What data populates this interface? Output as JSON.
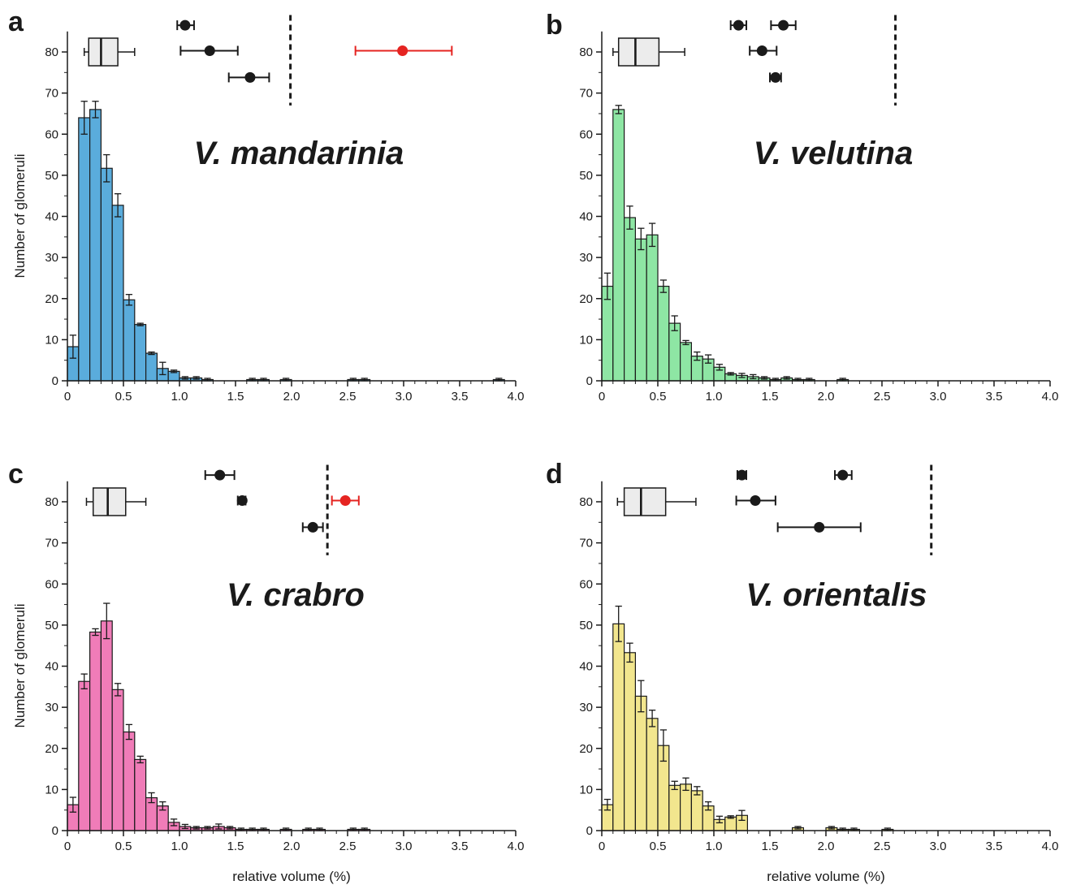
{
  "figure": {
    "ylabel": "Number of glomeruli",
    "xlabel": "relative volume (%)",
    "colors": {
      "axis": "#1a1a1a",
      "highlight_point": "#e52421",
      "box_fill": "#ececec"
    }
  },
  "chart_data": [
    {
      "type": "bar",
      "panel": "a",
      "species": "V. mandarinia",
      "ylabel": "Number of glomeruli",
      "xlabel": "",
      "bar_color": "#5aacdc",
      "xlim": [
        0,
        4.0
      ],
      "ylim": [
        0,
        85
      ],
      "xticks": [
        0,
        0.5,
        1.0,
        1.5,
        2.0,
        2.5,
        3.0,
        3.5,
        4.0
      ],
      "yticks": [
        0,
        10,
        20,
        30,
        40,
        50,
        60,
        70,
        80
      ],
      "bin_width": 0.1,
      "bins": [
        {
          "x": 0.05,
          "y": 8.3,
          "err": 2.8
        },
        {
          "x": 0.15,
          "y": 64.0,
          "err": 4.0
        },
        {
          "x": 0.25,
          "y": 66.0,
          "err": 2.0
        },
        {
          "x": 0.35,
          "y": 51.7,
          "err": 3.3
        },
        {
          "x": 0.45,
          "y": 42.7,
          "err": 2.8
        },
        {
          "x": 0.55,
          "y": 19.7,
          "err": 1.3
        },
        {
          "x": 0.65,
          "y": 13.7,
          "err": 0.3
        },
        {
          "x": 0.75,
          "y": 6.7,
          "err": 0.3
        },
        {
          "x": 0.85,
          "y": 3.0,
          "err": 1.5
        },
        {
          "x": 0.95,
          "y": 2.3,
          "err": 0.3
        },
        {
          "x": 1.05,
          "y": 0.7,
          "err": 0.3
        },
        {
          "x": 1.15,
          "y": 0.7,
          "err": 0.3
        },
        {
          "x": 1.25,
          "y": 0.3,
          "err": 0.3
        },
        {
          "x": 1.65,
          "y": 0.3,
          "err": 0.3
        },
        {
          "x": 1.75,
          "y": 0.3,
          "err": 0.3
        },
        {
          "x": 1.95,
          "y": 0.3,
          "err": 0.3
        },
        {
          "x": 2.55,
          "y": 0.3,
          "err": 0.3
        },
        {
          "x": 2.65,
          "y": 0.3,
          "err": 0.3
        },
        {
          "x": 3.85,
          "y": 0.3,
          "err": 0.3
        }
      ],
      "boxplot": {
        "y": 80,
        "whisker_low": 0.15,
        "q1": 0.19,
        "median": 0.3,
        "q3": 0.45,
        "whisker_high": 0.6
      },
      "outlier_points": [
        {
          "x": 1.05,
          "y": 86.5,
          "low": 0.98,
          "high": 1.13,
          "highlight": false
        },
        {
          "x": 1.27,
          "y": 80.3,
          "low": 1.01,
          "high": 1.52,
          "highlight": false
        },
        {
          "x": 1.63,
          "y": 73.8,
          "low": 1.44,
          "high": 1.8,
          "highlight": false
        },
        {
          "x": 2.99,
          "y": 80.3,
          "low": 2.57,
          "high": 3.43,
          "highlight": true
        }
      ],
      "threshold_x": 1.99
    },
    {
      "type": "bar",
      "panel": "b",
      "species": "V. velutina",
      "ylabel": "",
      "xlabel": "",
      "bar_color": "#8ee6a4",
      "xlim": [
        0,
        4.0
      ],
      "ylim": [
        0,
        85
      ],
      "xticks": [
        0,
        0.5,
        1.0,
        1.5,
        2.0,
        2.5,
        3.0,
        3.5,
        4.0
      ],
      "yticks": [
        0,
        10,
        20,
        30,
        40,
        50,
        60,
        70,
        80
      ],
      "bin_width": 0.1,
      "bins": [
        {
          "x": 0.05,
          "y": 23.0,
          "err": 3.2
        },
        {
          "x": 0.15,
          "y": 66.0,
          "err": 1.0
        },
        {
          "x": 0.25,
          "y": 39.7,
          "err": 2.8
        },
        {
          "x": 0.35,
          "y": 34.5,
          "err": 2.6
        },
        {
          "x": 0.45,
          "y": 35.5,
          "err": 2.8
        },
        {
          "x": 0.55,
          "y": 23.0,
          "err": 1.5
        },
        {
          "x": 0.65,
          "y": 14.0,
          "err": 1.8
        },
        {
          "x": 0.75,
          "y": 9.3,
          "err": 0.5
        },
        {
          "x": 0.85,
          "y": 6.0,
          "err": 1.0
        },
        {
          "x": 0.95,
          "y": 5.3,
          "err": 1.0
        },
        {
          "x": 1.05,
          "y": 3.3,
          "err": 0.7
        },
        {
          "x": 1.15,
          "y": 1.7,
          "err": 0.3
        },
        {
          "x": 1.25,
          "y": 1.3,
          "err": 0.5
        },
        {
          "x": 1.35,
          "y": 1.0,
          "err": 0.5
        },
        {
          "x": 1.45,
          "y": 0.7,
          "err": 0.3
        },
        {
          "x": 1.55,
          "y": 0.3,
          "err": 0.3
        },
        {
          "x": 1.65,
          "y": 0.7,
          "err": 0.3
        },
        {
          "x": 1.75,
          "y": 0.3,
          "err": 0.3
        },
        {
          "x": 1.85,
          "y": 0.3,
          "err": 0.3
        },
        {
          "x": 2.15,
          "y": 0.3,
          "err": 0.3
        }
      ],
      "boxplot": {
        "y": 80,
        "whisker_low": 0.1,
        "q1": 0.15,
        "median": 0.3,
        "q3": 0.51,
        "whisker_high": 0.74
      },
      "outlier_points": [
        {
          "x": 1.22,
          "y": 86.5,
          "low": 1.15,
          "high": 1.29,
          "highlight": false
        },
        {
          "x": 1.62,
          "y": 86.5,
          "low": 1.51,
          "high": 1.73,
          "highlight": false
        },
        {
          "x": 1.43,
          "y": 80.3,
          "low": 1.32,
          "high": 1.56,
          "highlight": false
        },
        {
          "x": 1.55,
          "y": 73.8,
          "low": 1.5,
          "high": 1.6,
          "highlight": false
        }
      ],
      "threshold_x": 2.62
    },
    {
      "type": "bar",
      "panel": "c",
      "species": "V. crabro",
      "ylabel": "Number of glomeruli",
      "xlabel": "relative volume (%)",
      "bar_color": "#f07cb8",
      "xlim": [
        0,
        4.0
      ],
      "ylim": [
        0,
        85
      ],
      "xticks": [
        0,
        0.5,
        1.0,
        1.5,
        2.0,
        2.5,
        3.0,
        3.5,
        4.0
      ],
      "yticks": [
        0,
        10,
        20,
        30,
        40,
        50,
        60,
        70,
        80
      ],
      "bin_width": 0.1,
      "bins": [
        {
          "x": 0.05,
          "y": 6.3,
          "err": 1.8
        },
        {
          "x": 0.15,
          "y": 36.3,
          "err": 1.8
        },
        {
          "x": 0.25,
          "y": 48.3,
          "err": 0.8
        },
        {
          "x": 0.35,
          "y": 51.0,
          "err": 4.3
        },
        {
          "x": 0.45,
          "y": 34.3,
          "err": 1.5
        },
        {
          "x": 0.55,
          "y": 24.0,
          "err": 1.8
        },
        {
          "x": 0.65,
          "y": 17.3,
          "err": 0.8
        },
        {
          "x": 0.75,
          "y": 8.0,
          "err": 1.2
        },
        {
          "x": 0.85,
          "y": 6.0,
          "err": 1.0
        },
        {
          "x": 0.95,
          "y": 2.0,
          "err": 0.8
        },
        {
          "x": 1.05,
          "y": 1.0,
          "err": 0.5
        },
        {
          "x": 1.15,
          "y": 0.7,
          "err": 0.3
        },
        {
          "x": 1.25,
          "y": 0.7,
          "err": 0.3
        },
        {
          "x": 1.35,
          "y": 1.0,
          "err": 0.6
        },
        {
          "x": 1.45,
          "y": 0.7,
          "err": 0.3
        },
        {
          "x": 1.55,
          "y": 0.3,
          "err": 0.3
        },
        {
          "x": 1.65,
          "y": 0.3,
          "err": 0.3
        },
        {
          "x": 1.75,
          "y": 0.3,
          "err": 0.3
        },
        {
          "x": 1.95,
          "y": 0.3,
          "err": 0.3
        },
        {
          "x": 2.15,
          "y": 0.3,
          "err": 0.3
        },
        {
          "x": 2.25,
          "y": 0.3,
          "err": 0.3
        },
        {
          "x": 2.55,
          "y": 0.3,
          "err": 0.3
        },
        {
          "x": 2.65,
          "y": 0.3,
          "err": 0.3
        }
      ],
      "boxplot": {
        "y": 80,
        "whisker_low": 0.17,
        "q1": 0.23,
        "median": 0.36,
        "q3": 0.52,
        "whisker_high": 0.7
      },
      "outlier_points": [
        {
          "x": 1.36,
          "y": 86.5,
          "low": 1.23,
          "high": 1.49,
          "highlight": false
        },
        {
          "x": 1.56,
          "y": 80.3,
          "low": 1.52,
          "high": 1.59,
          "highlight": false
        },
        {
          "x": 2.19,
          "y": 73.8,
          "low": 2.1,
          "high": 2.28,
          "highlight": false
        },
        {
          "x": 2.48,
          "y": 80.3,
          "low": 2.36,
          "high": 2.6,
          "highlight": true
        }
      ],
      "threshold_x": 2.32
    },
    {
      "type": "bar",
      "panel": "d",
      "species": "V. orientalis",
      "ylabel": "",
      "xlabel": "relative volume (%)",
      "bar_color": "#f2e68e",
      "xlim": [
        0,
        4.0
      ],
      "ylim": [
        0,
        85
      ],
      "xticks": [
        0,
        0.5,
        1.0,
        1.5,
        2.0,
        2.5,
        3.0,
        3.5,
        4.0
      ],
      "yticks": [
        0,
        10,
        20,
        30,
        40,
        50,
        60,
        70,
        80
      ],
      "bin_width": 0.1,
      "bins": [
        {
          "x": 0.05,
          "y": 6.3,
          "err": 1.3
        },
        {
          "x": 0.15,
          "y": 50.3,
          "err": 4.3
        },
        {
          "x": 0.25,
          "y": 43.3,
          "err": 2.3
        },
        {
          "x": 0.35,
          "y": 32.7,
          "err": 3.8
        },
        {
          "x": 0.45,
          "y": 27.3,
          "err": 2.0
        },
        {
          "x": 0.55,
          "y": 20.7,
          "err": 3.8
        },
        {
          "x": 0.65,
          "y": 11.0,
          "err": 1.0
        },
        {
          "x": 0.75,
          "y": 11.3,
          "err": 1.5
        },
        {
          "x": 0.85,
          "y": 9.7,
          "err": 1.0
        },
        {
          "x": 0.95,
          "y": 6.0,
          "err": 1.0
        },
        {
          "x": 1.05,
          "y": 2.7,
          "err": 0.8
        },
        {
          "x": 1.15,
          "y": 3.3,
          "err": 0.3
        },
        {
          "x": 1.25,
          "y": 3.7,
          "err": 1.2
        },
        {
          "x": 1.75,
          "y": 0.7,
          "err": 0.3
        },
        {
          "x": 2.05,
          "y": 0.7,
          "err": 0.3
        },
        {
          "x": 2.15,
          "y": 0.3,
          "err": 0.3
        },
        {
          "x": 2.25,
          "y": 0.3,
          "err": 0.3
        },
        {
          "x": 2.55,
          "y": 0.3,
          "err": 0.3
        }
      ],
      "boxplot": {
        "y": 80,
        "whisker_low": 0.14,
        "q1": 0.2,
        "median": 0.35,
        "q3": 0.57,
        "whisker_high": 0.84
      },
      "outlier_points": [
        {
          "x": 1.25,
          "y": 86.5,
          "low": 1.21,
          "high": 1.29,
          "highlight": false
        },
        {
          "x": 2.15,
          "y": 86.5,
          "low": 2.08,
          "high": 2.23,
          "highlight": false
        },
        {
          "x": 1.37,
          "y": 80.3,
          "low": 1.2,
          "high": 1.55,
          "highlight": false
        },
        {
          "x": 1.94,
          "y": 73.8,
          "low": 1.57,
          "high": 2.31,
          "highlight": false
        }
      ],
      "threshold_x": 2.94
    }
  ]
}
